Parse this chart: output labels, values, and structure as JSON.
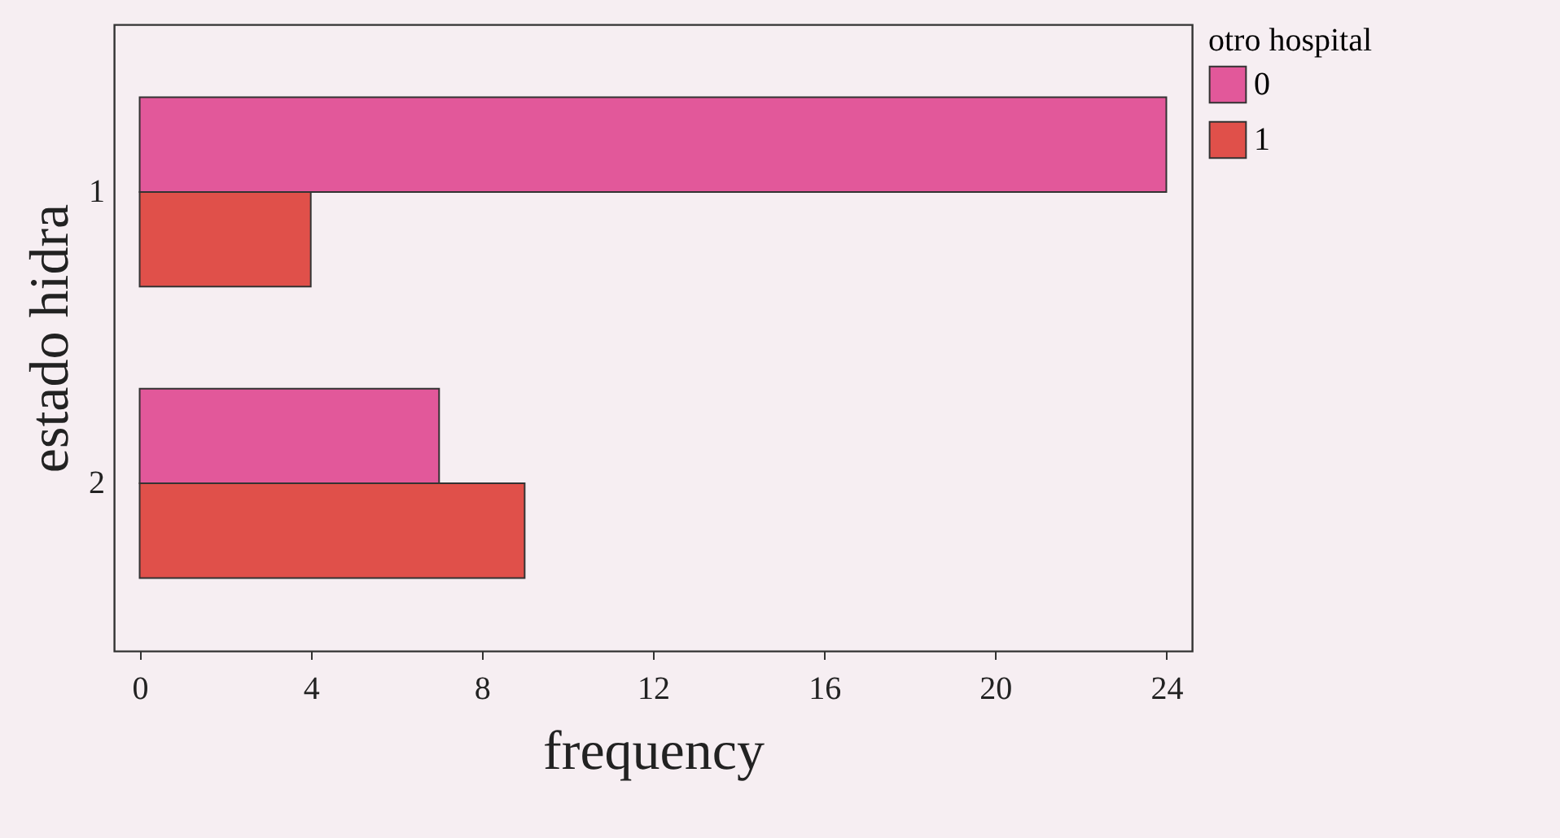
{
  "chart_data": {
    "type": "bar",
    "orientation": "horizontal",
    "xlabel": "frequency",
    "ylabel": "estado hidra",
    "legend_title": "otro hospital",
    "categories": [
      "1",
      "2"
    ],
    "series": [
      {
        "name": "0",
        "color": "#e2589a",
        "values": [
          24,
          7
        ]
      },
      {
        "name": "1",
        "color": "#e0504a",
        "values": [
          4,
          9
        ]
      }
    ],
    "xlim": [
      -0.6,
      24.6
    ],
    "xticks": [
      0,
      4,
      8,
      12,
      16,
      20,
      24
    ],
    "grid": false,
    "legend": "right"
  }
}
